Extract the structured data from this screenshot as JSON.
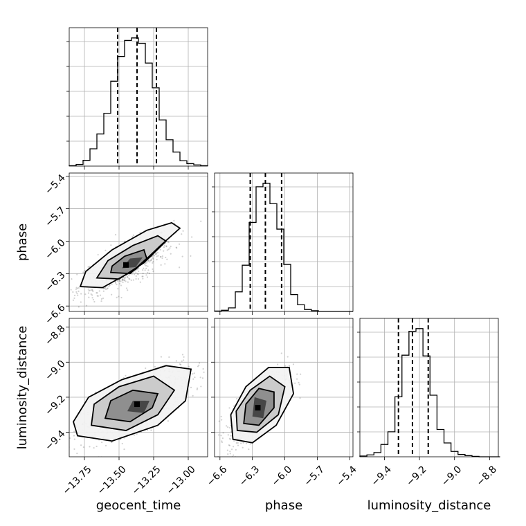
{
  "chart_data": {
    "type": "corner",
    "parameters": [
      "geocent_time",
      "phase",
      "luminosity_distance"
    ],
    "axes": {
      "geocent_time": {
        "label": "geocent_time",
        "lim": [
          -13.86,
          -12.86
        ],
        "ticks": [
          -13.75,
          -13.5,
          -13.25,
          -13.0
        ],
        "tick_labels": [
          "−13.75",
          "−13.50",
          "−13.25",
          "−13.00"
        ],
        "quantiles": [
          -13.51,
          -13.37,
          -13.23
        ]
      },
      "phase": {
        "label": "phase",
        "lim": [
          -6.65,
          -5.37
        ],
        "ticks": [
          -6.6,
          -6.3,
          -6.0,
          -5.7,
          -5.4
        ],
        "tick_labels": [
          "−6.6",
          "−6.3",
          "−6.0",
          "−5.7",
          "−5.4"
        ],
        "quantiles": [
          -6.32,
          -6.18,
          -6.03
        ]
      },
      "luminosity_distance": {
        "label": "luminosity_distance",
        "lim": [
          -9.54,
          -8.75
        ],
        "ticks": [
          -9.4,
          -9.2,
          -9.0,
          -8.8
        ],
        "tick_labels": [
          "−9.4",
          "−9.2",
          "−9.0",
          "−8.8"
        ],
        "quantiles": [
          -9.32,
          -9.24,
          -9.15
        ]
      }
    },
    "histograms": {
      "geocent_time": {
        "bin_edges": [
          -13.86,
          -13.81,
          -13.76,
          -13.71,
          -13.66,
          -13.61,
          -13.56,
          -13.51,
          -13.46,
          -13.41,
          -13.36,
          -13.31,
          -13.26,
          -13.21,
          -13.16,
          -13.11,
          -13.06,
          -13.01,
          -12.96,
          -12.91,
          -12.86
        ],
        "counts": [
          1,
          4,
          14,
          42,
          78,
          128,
          206,
          266,
          305,
          311,
          298,
          250,
          190,
          112,
          64,
          34,
          13,
          6,
          3,
          1
        ]
      },
      "phase": {
        "bin_edges": [
          -6.65,
          -6.586,
          -6.522,
          -6.458,
          -6.394,
          -6.33,
          -6.266,
          -6.202,
          -6.138,
          -6.074,
          -6.01,
          -5.946,
          -5.882,
          -5.818,
          -5.754,
          -5.69,
          -5.626,
          -5.562,
          -5.498,
          -5.434,
          -5.37
        ],
        "counts": [
          1,
          3,
          9,
          50,
          118,
          227,
          318,
          327,
          275,
          210,
          120,
          43,
          17,
          5,
          2,
          0,
          0,
          0,
          0,
          0
        ]
      },
      "luminosity_distance": {
        "bin_edges": [
          -9.54,
          -9.5,
          -9.46,
          -9.42,
          -9.38,
          -9.34,
          -9.3,
          -9.26,
          -9.22,
          -9.18,
          -9.14,
          -9.1,
          -9.06,
          -9.02,
          -8.98,
          -8.94,
          -8.9,
          -8.86,
          -8.82,
          -8.78,
          -8.74
        ],
        "counts": [
          2,
          5,
          11,
          32,
          65,
          156,
          264,
          326,
          333,
          262,
          160,
          71,
          36,
          14,
          6,
          3,
          1,
          0,
          0,
          0
        ]
      }
    },
    "pairs": [
      {
        "x": "geocent_time",
        "y": "phase",
        "contour_levels": [
          [
            [
              -13.78,
              -6.42
            ],
            [
              -13.62,
              -6.43
            ],
            [
              -13.38,
              -6.26
            ],
            [
              -13.2,
              -6.04
            ],
            [
              -13.06,
              -5.88
            ],
            [
              -13.12,
              -5.83
            ],
            [
              -13.3,
              -5.9
            ],
            [
              -13.55,
              -6.08
            ],
            [
              -13.74,
              -6.28
            ]
          ],
          [
            [
              -13.66,
              -6.34
            ],
            [
              -13.5,
              -6.35
            ],
            [
              -13.32,
              -6.2
            ],
            [
              -13.16,
              -6.0
            ],
            [
              -13.22,
              -5.95
            ],
            [
              -13.4,
              -6.04
            ],
            [
              -13.58,
              -6.18
            ]
          ],
          [
            [
              -13.56,
              -6.29
            ],
            [
              -13.42,
              -6.3
            ],
            [
              -13.3,
              -6.16
            ],
            [
              -13.32,
              -6.08
            ],
            [
              -13.46,
              -6.14
            ],
            [
              -13.55,
              -6.23
            ]
          ],
          [
            [
              -13.48,
              -6.25
            ],
            [
              -13.38,
              -6.24
            ],
            [
              -13.33,
              -6.15
            ],
            [
              -13.42,
              -6.16
            ]
          ]
        ],
        "peak": [
          -13.45,
          -6.22
        ]
      },
      {
        "x": "geocent_time",
        "y": "luminosity_distance",
        "contour_levels": [
          [
            [
              -13.8,
              -9.42
            ],
            [
              -13.55,
              -9.45
            ],
            [
              -13.22,
              -9.36
            ],
            [
              -13.02,
              -9.22
            ],
            [
              -12.98,
              -9.04
            ],
            [
              -13.16,
              -9.02
            ],
            [
              -13.48,
              -9.1
            ],
            [
              -13.72,
              -9.2
            ],
            [
              -13.83,
              -9.34
            ]
          ],
          [
            [
              -13.7,
              -9.36
            ],
            [
              -13.45,
              -9.39
            ],
            [
              -13.22,
              -9.3
            ],
            [
              -13.1,
              -9.16
            ],
            [
              -13.25,
              -9.08
            ],
            [
              -13.5,
              -9.14
            ],
            [
              -13.68,
              -9.24
            ]
          ],
          [
            [
              -13.6,
              -9.32
            ],
            [
              -13.42,
              -9.34
            ],
            [
              -13.26,
              -9.26
            ],
            [
              -13.22,
              -9.18
            ],
            [
              -13.4,
              -9.16
            ],
            [
              -13.56,
              -9.22
            ]
          ],
          [
            [
              -13.44,
              -9.28
            ],
            [
              -13.32,
              -9.29
            ],
            [
              -13.28,
              -9.22
            ],
            [
              -13.4,
              -9.22
            ]
          ]
        ],
        "peak": [
          -13.37,
          -9.24
        ]
      },
      {
        "x": "phase",
        "y": "luminosity_distance",
        "contour_levels": [
          [
            [
              -6.48,
              -9.44
            ],
            [
              -6.3,
              -9.46
            ],
            [
              -6.08,
              -9.36
            ],
            [
              -5.92,
              -9.18
            ],
            [
              -5.96,
              -9.03
            ],
            [
              -6.15,
              -9.03
            ],
            [
              -6.36,
              -9.14
            ],
            [
              -6.5,
              -9.3
            ]
          ],
          [
            [
              -6.44,
              -9.39
            ],
            [
              -6.26,
              -9.4
            ],
            [
              -6.06,
              -9.3
            ],
            [
              -6.0,
              -9.14
            ],
            [
              -6.14,
              -9.08
            ],
            [
              -6.32,
              -9.16
            ],
            [
              -6.45,
              -9.28
            ]
          ],
          [
            [
              -6.38,
              -9.35
            ],
            [
              -6.24,
              -9.36
            ],
            [
              -6.1,
              -9.26
            ],
            [
              -6.1,
              -9.17
            ],
            [
              -6.24,
              -9.15
            ],
            [
              -6.36,
              -9.24
            ]
          ],
          [
            [
              -6.3,
              -9.31
            ],
            [
              -6.2,
              -9.32
            ],
            [
              -6.17,
              -9.22
            ],
            [
              -6.28,
              -9.2
            ]
          ]
        ],
        "peak": [
          -6.25,
          -9.26
        ]
      }
    ],
    "grid": true
  }
}
